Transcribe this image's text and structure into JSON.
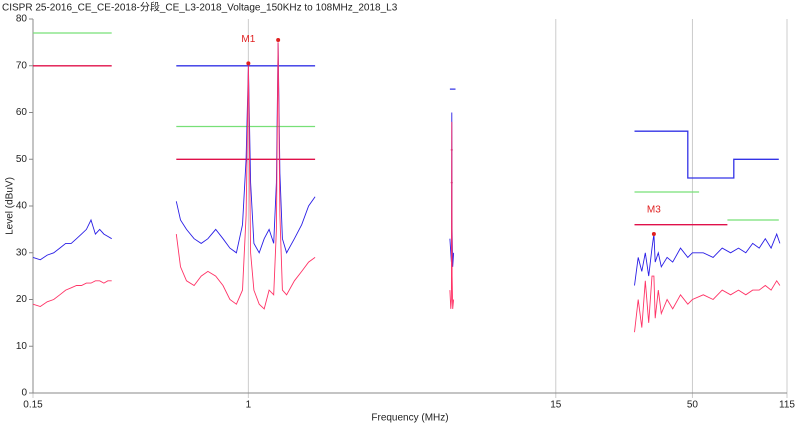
{
  "chart_data": {
    "type": "line",
    "title": "CISPR 25-2016_CE_CE-2018-分段_CE_L3-2018_Voltage_150KHz to 108MHz_2018_L3",
    "x_label": "Frequency (MHz)",
    "y_label": "Level (dBuV)",
    "x_scale": "log",
    "grid": "x",
    "xlim": [
      0.15,
      115
    ],
    "xticks": [
      0.15,
      1,
      15,
      50,
      115
    ],
    "ylim": [
      0,
      80
    ],
    "yticks": [
      0,
      10,
      20,
      30,
      40,
      50,
      60,
      70,
      80
    ],
    "x": [
      0.15,
      0.16,
      0.17,
      0.18,
      0.19,
      0.2,
      0.21,
      0.22,
      0.23,
      0.24,
      0.25,
      0.26,
      0.27,
      0.28,
      0.29,
      0.3,
      null,
      0.53,
      0.55,
      0.58,
      0.62,
      0.66,
      0.7,
      0.75,
      0.8,
      0.85,
      0.9,
      0.95,
      0.98,
      1.0,
      1.02,
      1.05,
      1.1,
      1.15,
      1.2,
      1.25,
      1.28,
      1.3,
      1.32,
      1.35,
      1.4,
      1.5,
      1.6,
      1.7,
      1.8,
      null,
      5.9,
      5.95,
      5.98,
      6.0,
      6.02,
      6.05,
      6.1,
      null,
      30,
      31,
      32,
      33,
      34,
      35,
      35.6,
      36,
      37,
      38,
      40,
      42,
      45,
      48,
      50,
      55,
      60,
      65,
      70,
      75,
      80,
      85,
      90,
      95,
      100,
      105,
      108
    ],
    "series": [
      {
        "color": "#3333e6",
        "x": [
          0.53,
          1.8,
          null,
          5.9,
          6.2,
          null,
          30,
          48,
          48,
          72,
          72,
          107
        ],
        "values": [
          70,
          70,
          null,
          65,
          65,
          null,
          56,
          56,
          46,
          46,
          50,
          50
        ]
      },
      {
        "color": "#77e077",
        "x": [
          0.15,
          0.3,
          null,
          0.53,
          1.8,
          null,
          30,
          53,
          null,
          68,
          107
        ],
        "values": [
          77,
          77,
          null,
          57,
          57,
          null,
          43,
          43,
          null,
          37,
          37
        ]
      },
      {
        "color": "#e0104a",
        "x": [
          0.15,
          0.3,
          null,
          0.53,
          1.8,
          null,
          5.95,
          6.05,
          null,
          5.95,
          6.05,
          null,
          30,
          68
        ],
        "values": [
          70,
          70,
          null,
          50,
          50,
          null,
          52,
          52,
          null,
          45,
          45,
          null,
          36,
          36
        ]
      },
      {
        "color": "#2a1ee6",
        "values": [
          29,
          28.5,
          29.5,
          30,
          31,
          32,
          32,
          33,
          34,
          35,
          37,
          34,
          35,
          34,
          33.5,
          33,
          null,
          41,
          37,
          35,
          33,
          32,
          33,
          35,
          33,
          31,
          30,
          36,
          50,
          70,
          45,
          32,
          30,
          33,
          35,
          32,
          45,
          75,
          47,
          33,
          30,
          33,
          36,
          40,
          42,
          null,
          33,
          30,
          28,
          60,
          35,
          27,
          30,
          null,
          23,
          29,
          26,
          30,
          25,
          31,
          34,
          28,
          30,
          27,
          29,
          28,
          31,
          29,
          30,
          30,
          29,
          31,
          30,
          31,
          30,
          32,
          31,
          33,
          31,
          34,
          32
        ]
      },
      {
        "color": "#ff3366",
        "values": [
          19,
          18.5,
          19.5,
          20,
          21,
          22,
          22.5,
          23,
          23,
          23.5,
          23.5,
          24,
          24,
          23.5,
          24,
          24,
          null,
          34,
          27,
          24,
          23,
          25,
          26,
          25,
          23,
          20,
          19,
          22,
          38,
          70,
          30,
          22,
          19,
          18,
          22,
          21,
          35,
          75,
          38,
          22,
          21,
          24,
          26,
          28,
          29,
          null,
          22,
          18,
          20,
          58,
          25,
          18,
          20,
          null,
          13,
          20,
          14,
          24,
          15,
          25,
          25,
          16,
          22,
          17,
          20,
          18,
          21,
          19,
          20,
          21,
          20,
          22,
          21,
          22,
          21,
          22,
          22,
          23,
          22,
          24,
          23
        ]
      }
    ],
    "markers": [
      {
        "label": "M1",
        "x": 1.0,
        "y": 70.5
      },
      {
        "x": 1.3,
        "y": 75.5
      },
      {
        "label": "M3",
        "x": 35.6,
        "y": 34
      }
    ]
  }
}
